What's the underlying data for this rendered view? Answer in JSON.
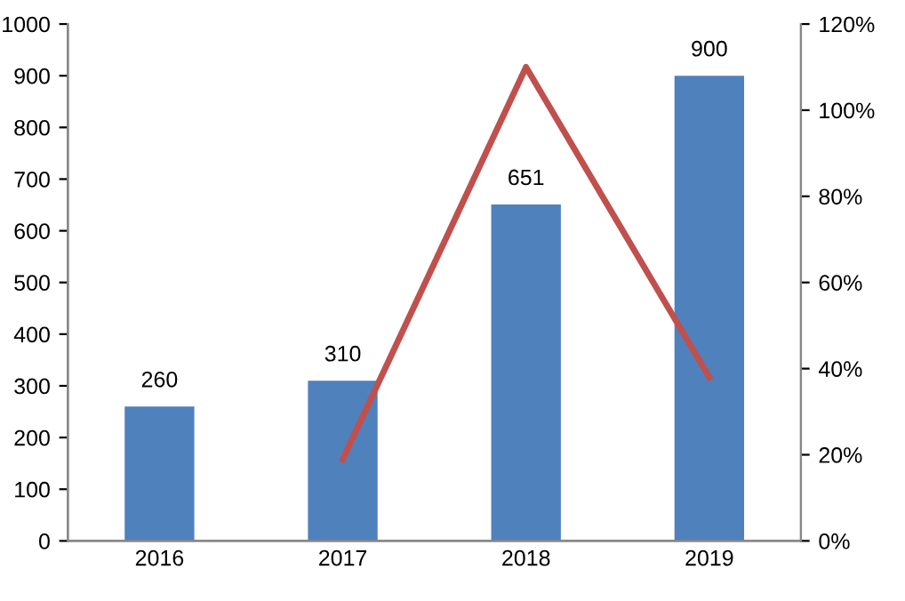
{
  "chart_data": {
    "type": "bar",
    "categories": [
      "2016",
      "2017",
      "2018",
      "2019"
    ],
    "series": [
      {
        "color": "#4f81bd",
        "values": [
          260,
          310,
          651,
          900
        ],
        "value_labels": [
          "260",
          "310",
          "651",
          "900"
        ]
      },
      {
        "type": "line",
        "axis": "y2",
        "color": "#c0504d",
        "values": [
          null,
          19,
          110,
          38
        ]
      }
    ],
    "ylim": [
      0,
      1000
    ],
    "yticks": [
      0,
      100,
      200,
      300,
      400,
      500,
      600,
      700,
      800,
      900,
      1000
    ],
    "y2lim": [
      0,
      120
    ],
    "y2ticks": [
      {
        "value": 0,
        "label": "0%"
      },
      {
        "value": 20,
        "label": "20%"
      },
      {
        "value": 40,
        "label": "40%"
      },
      {
        "value": 60,
        "label": "60%"
      },
      {
        "value": 80,
        "label": "80%"
      },
      {
        "value": 100,
        "label": "100%"
      },
      {
        "value": 120,
        "label": "120%"
      }
    ],
    "grid": false,
    "legend": false,
    "marker": "none",
    "line_style": "solid"
  }
}
